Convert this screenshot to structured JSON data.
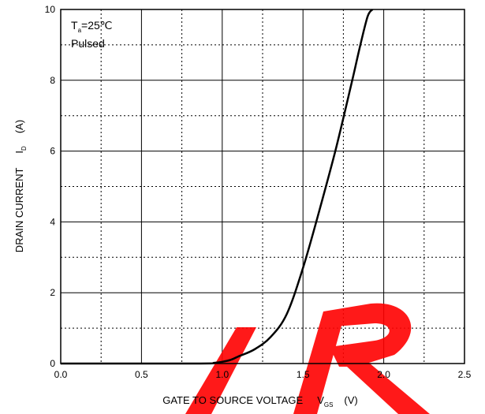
{
  "chart_data": {
    "type": "line",
    "title": "",
    "xlabel": {
      "main": "GATE TO SOURCE VOLTAGE",
      "symbol": "V",
      "subscript": "GS",
      "unit": "(V)"
    },
    "ylabel": {
      "main": "DRAIN CURRENT",
      "symbol": "I",
      "subscript": "D",
      "unit": "(A)"
    },
    "xlim": [
      0,
      2.5
    ],
    "ylim": [
      0,
      10
    ],
    "x_ticks": [
      "0.0",
      "0.5",
      "1.0",
      "1.5",
      "2.0",
      "2.5"
    ],
    "y_ticks": [
      "0",
      "2",
      "4",
      "6",
      "8",
      "10"
    ],
    "grid": {
      "major": "solid",
      "minor": "dotted"
    },
    "annotations": [
      {
        "main": "T",
        "subscript": "a",
        "rest": "=25℃"
      },
      {
        "text": "Pulsed"
      }
    ],
    "series": [
      {
        "x": [
          0.0,
          0.85,
          0.95,
          1.0,
          1.05,
          1.1,
          1.2,
          1.3,
          1.4,
          1.5,
          1.6,
          1.7,
          1.8,
          1.85,
          1.9,
          1.93
        ],
        "y": [
          0.0,
          0.0,
          0.02,
          0.05,
          0.1,
          0.2,
          0.4,
          0.75,
          1.4,
          2.7,
          4.3,
          6.0,
          7.9,
          8.9,
          9.8,
          10.0
        ]
      }
    ],
    "colors": {
      "line": "#000000",
      "grid": "#000000",
      "watermark": "#ff0000"
    }
  }
}
